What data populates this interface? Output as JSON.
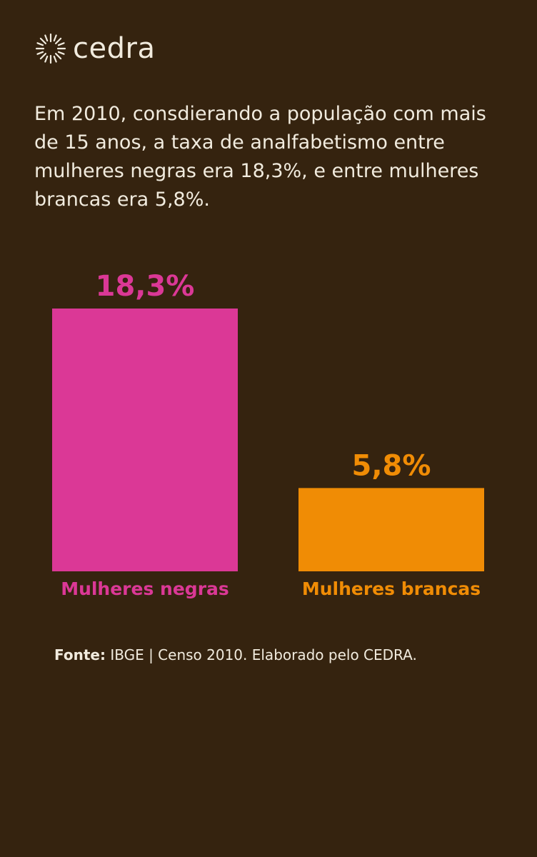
{
  "brand": {
    "name": "cedra",
    "icon": "sun-icon"
  },
  "intro_text": "Em 2010, consdierando a população com mais de 15 anos, a taxa de analfabetismo entre mulheres negras era 18,3%, e entre mulheres brancas era 5,8%.",
  "source": {
    "label": "Fonte:",
    "text": "IBGE | Censo 2010. Elaborado pelo CEDRA."
  },
  "colors": {
    "background": "#35230f",
    "text": "#f1ebde",
    "negras": "#db3896",
    "brancas": "#f08c05"
  },
  "chart_data": {
    "type": "bar",
    "title": "",
    "xlabel": "",
    "ylabel": "",
    "categories": [
      "Mulheres negras",
      "Mulheres brancas"
    ],
    "values": [
      18.3,
      5.8
    ],
    "value_labels": [
      "18,3%",
      "5,8%"
    ],
    "colors": [
      "#db3896",
      "#f08c05"
    ],
    "ylim": [
      0,
      18.3
    ],
    "grid": false,
    "legend": "none"
  }
}
